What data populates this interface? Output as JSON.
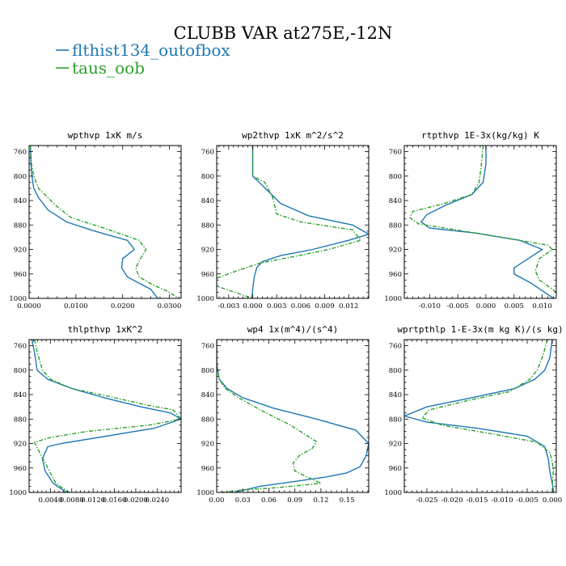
{
  "figure_title": "CLUBB VAR at275E,-12N",
  "legend": [
    {
      "label": "flthist134_outofbox",
      "color": "#1f77b4",
      "dash": "solid"
    },
    {
      "label": "taus_oob",
      "color": "#2ca02c",
      "dash": "dashdot"
    }
  ],
  "chart_data": [
    {
      "type": "line",
      "title": "wpthvp  1xK m/s",
      "y_ticks": [
        760,
        800,
        840,
        880,
        920,
        960,
        1000
      ],
      "ylim": [
        1000,
        750
      ],
      "xlim": [
        0.0,
        0.0325
      ],
      "x_ticks": [
        0.0,
        0.01,
        0.02,
        0.03
      ],
      "x_tick_labels": [
        "0.0000",
        "0.0100",
        "0.0200",
        "0.0300"
      ],
      "series": [
        {
          "name": "flthist134_outofbox",
          "x": [
            0.0003,
            0.0004,
            0.0006,
            0.001,
            0.002,
            0.004,
            0.008,
            0.014,
            0.021,
            0.0225,
            0.02,
            0.0198,
            0.021,
            0.0235,
            0.026,
            0.0275
          ],
          "y": [
            750,
            780,
            800,
            820,
            835,
            855,
            875,
            890,
            905,
            920,
            935,
            950,
            965,
            975,
            985,
            1000
          ]
        },
        {
          "name": "taus_oob",
          "x": [
            0.0003,
            0.0005,
            0.001,
            0.002,
            0.004,
            0.006,
            0.009,
            0.016,
            0.0235,
            0.025,
            0.0238,
            0.0228,
            0.0235,
            0.0265,
            0.0295,
            0.032
          ],
          "y": [
            750,
            780,
            800,
            820,
            835,
            850,
            868,
            885,
            905,
            920,
            935,
            950,
            965,
            978,
            988,
            1000
          ]
        }
      ]
    },
    {
      "type": "line",
      "title": "wp2thvp  1xK m^2/s^2",
      "y_ticks": [
        760,
        800,
        840,
        880,
        920,
        960,
        1000
      ],
      "ylim": [
        1000,
        750
      ],
      "xlim": [
        -0.0045,
        0.0145
      ],
      "x_ticks": [
        -0.003,
        0.0,
        0.003,
        0.006,
        0.009,
        0.012
      ],
      "x_tick_labels": [
        "-0.003",
        "0.000",
        "0.003",
        "0.006",
        "0.009",
        "0.012"
      ],
      "series": [
        {
          "name": "flthist134_outofbox",
          "x": [
            0.0,
            0.0,
            0.0,
            0.0008,
            0.0035,
            0.007,
            0.0125,
            0.0145,
            0.012,
            0.0075,
            0.0035,
            0.0012,
            0.0005,
            0.0002,
            0.0,
            -0.0001
          ],
          "y": [
            750,
            775,
            800,
            810,
            845,
            865,
            880,
            895,
            905,
            920,
            930,
            940,
            950,
            965,
            985,
            1000
          ]
        },
        {
          "name": "taus_oob",
          "x": [
            0.0,
            0.0,
            0.0,
            0.0015,
            0.0025,
            0.003,
            0.006,
            0.0125,
            0.0135,
            0.0095,
            0.005,
            0.001,
            -0.002,
            -0.0045,
            -0.0045,
            0.0
          ],
          "y": [
            750,
            775,
            800,
            810,
            835,
            862,
            875,
            888,
            905,
            920,
            932,
            942,
            955,
            967,
            980,
            1000
          ]
        }
      ]
    },
    {
      "type": "line",
      "title": "rtpthvp  1E-3x(kg/kg) K",
      "y_ticks": [
        760,
        800,
        840,
        880,
        920,
        960,
        1000
      ],
      "ylim": [
        1000,
        750
      ],
      "xlim": [
        -0.0145,
        0.0125
      ],
      "x_ticks": [
        -0.01,
        -0.005,
        0.0,
        0.005,
        0.01
      ],
      "x_tick_labels": [
        "-0.010",
        "-0.005",
        "0.000",
        "0.005",
        "0.010"
      ],
      "series": [
        {
          "name": "flthist134_outofbox",
          "x": [
            0.0,
            0.0,
            -0.0005,
            -0.0025,
            -0.007,
            -0.0105,
            -0.0115,
            -0.01,
            -0.002,
            0.006,
            0.01,
            0.0075,
            0.005,
            0.005,
            0.008,
            0.012
          ],
          "y": [
            750,
            780,
            810,
            830,
            847,
            863,
            875,
            885,
            893,
            905,
            920,
            935,
            950,
            960,
            975,
            1000
          ]
        },
        {
          "name": "taus_oob",
          "x": [
            -0.0005,
            -0.0008,
            -0.0012,
            -0.0025,
            -0.0075,
            -0.013,
            -0.0135,
            -0.012,
            -0.004,
            0.006,
            0.011,
            0.0118,
            0.0095,
            0.0088,
            0.0095,
            0.0125
          ],
          "y": [
            750,
            780,
            810,
            830,
            845,
            858,
            868,
            878,
            890,
            905,
            913,
            920,
            935,
            955,
            970,
            990
          ]
        }
      ]
    },
    {
      "type": "line",
      "title": "thlpthvp  1xK^2",
      "y_ticks": [
        760,
        800,
        840,
        880,
        920,
        960,
        1000
      ],
      "ylim": [
        1000,
        750
      ],
      "xlim": [
        0.0,
        0.0285
      ],
      "x_ticks": [
        0.004,
        0.008,
        0.012,
        0.016,
        0.02,
        0.024
      ],
      "x_tick_labels": [
        "0.0040",
        "0.0080",
        "0.0120",
        "0.0160",
        "0.0200",
        "0.0240"
      ],
      "series": [
        {
          "name": "flthist134_outofbox",
          "x": [
            0.0005,
            0.001,
            0.0015,
            0.0035,
            0.008,
            0.014,
            0.021,
            0.0265,
            0.0285,
            0.0235,
            0.013,
            0.006,
            0.0035,
            0.0025,
            0.003,
            0.0045,
            0.007
          ],
          "y": [
            750,
            770,
            800,
            815,
            830,
            845,
            860,
            870,
            880,
            895,
            910,
            920,
            925,
            945,
            965,
            985,
            1000
          ]
        },
        {
          "name": "taus_oob",
          "x": [
            0.001,
            0.0015,
            0.0025,
            0.004,
            0.008,
            0.015,
            0.022,
            0.027,
            0.0285,
            0.0225,
            0.011,
            0.004,
            0.001,
            0.002,
            0.0035,
            0.005,
            0.0075
          ],
          "y": [
            750,
            770,
            800,
            815,
            830,
            843,
            857,
            865,
            880,
            890,
            900,
            910,
            918,
            935,
            960,
            985,
            1000
          ]
        }
      ]
    },
    {
      "type": "line",
      "title": "wp4  1x(m^4)/(s^4)",
      "y_ticks": [
        760,
        800,
        840,
        880,
        920,
        960,
        1000
      ],
      "ylim": [
        1000,
        750
      ],
      "xlim": [
        0.0,
        0.175
      ],
      "x_ticks": [
        0.0,
        0.03,
        0.06,
        0.09,
        0.12,
        0.15
      ],
      "x_tick_labels": [
        "0.00",
        "0.03",
        "0.06",
        "0.09",
        "0.12",
        "0.15"
      ],
      "series": [
        {
          "name": "flthist134_outofbox",
          "x": [
            0.0,
            0.0,
            0.003,
            0.012,
            0.03,
            0.065,
            0.115,
            0.16,
            0.175,
            0.172,
            0.165,
            0.15,
            0.125,
            0.09,
            0.05,
            0.02
          ],
          "y": [
            750,
            790,
            815,
            830,
            845,
            862,
            880,
            898,
            920,
            940,
            958,
            968,
            975,
            982,
            990,
            1000
          ]
        },
        {
          "name": "taus_oob",
          "x": [
            0.0,
            0.0,
            0.003,
            0.01,
            0.025,
            0.05,
            0.085,
            0.115,
            0.11,
            0.095,
            0.088,
            0.09,
            0.1,
            0.12,
            0.07,
            0.03,
            0.005
          ],
          "y": [
            750,
            790,
            815,
            830,
            845,
            865,
            890,
            917,
            928,
            940,
            952,
            965,
            972,
            985,
            992,
            996,
            1000
          ]
        }
      ]
    },
    {
      "type": "line",
      "title": "wprtpthlp  1-E-3x(m kg K)/(s kg)",
      "y_ticks": [
        760,
        800,
        840,
        880,
        920,
        960,
        1000
      ],
      "ylim": [
        1000,
        750
      ],
      "xlim": [
        -0.0295,
        0.0008
      ],
      "x_ticks": [
        -0.025,
        -0.02,
        -0.015,
        -0.01,
        -0.005,
        0.0
      ],
      "x_tick_labels": [
        "-0.025",
        "-0.020",
        "-0.015",
        "-0.010",
        "-0.005",
        "0.000"
      ],
      "series": [
        {
          "name": "flthist134_outofbox",
          "x": [
            0.0,
            -0.0005,
            -0.0015,
            -0.0035,
            -0.0075,
            -0.016,
            -0.025,
            -0.0295,
            -0.025,
            -0.015,
            -0.005,
            -0.0015,
            -0.0008,
            -0.0005,
            0.0,
            0.0003
          ],
          "y": [
            750,
            780,
            800,
            815,
            830,
            845,
            860,
            875,
            885,
            895,
            908,
            925,
            945,
            965,
            985,
            1000
          ]
        },
        {
          "name": "taus_oob",
          "x": [
            -0.001,
            -0.0018,
            -0.003,
            -0.0045,
            -0.0085,
            -0.017,
            -0.0245,
            -0.026,
            -0.022,
            -0.0115,
            -0.003,
            -0.0005,
            0.0,
            0.0002,
            0.0,
            0.0002
          ],
          "y": [
            750,
            775,
            800,
            815,
            835,
            850,
            865,
            878,
            890,
            905,
            918,
            935,
            950,
            965,
            985,
            1000
          ]
        }
      ]
    }
  ]
}
